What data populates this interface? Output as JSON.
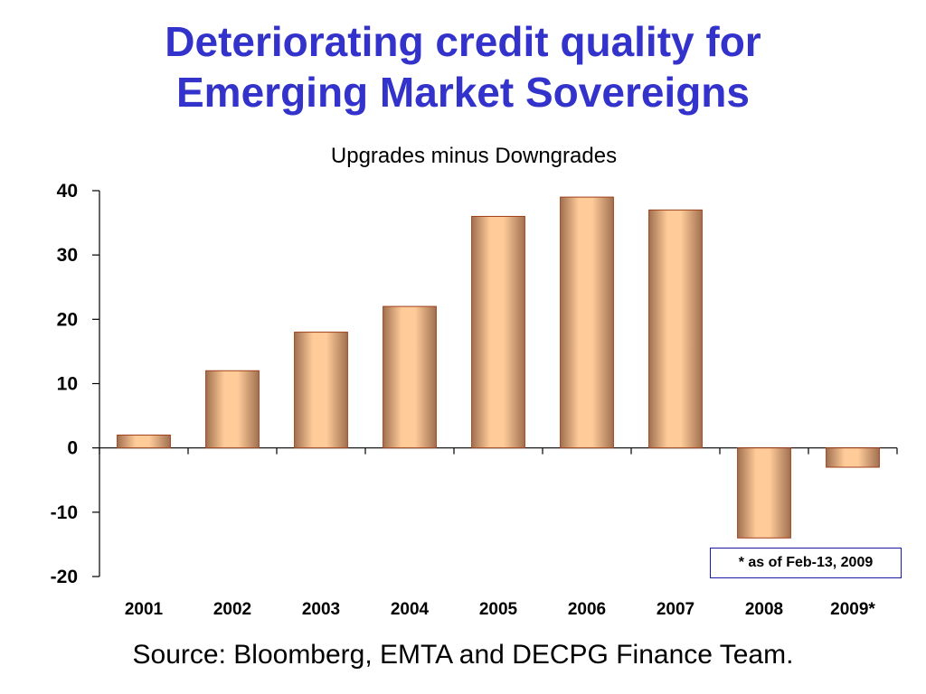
{
  "title_line1": "Deteriorating credit quality for",
  "title_line2": "Emerging Market Sovereigns",
  "footnote": "* as of Feb-13, 2009",
  "source": "Source: Bloomberg, EMTA and DECPG Finance Team.",
  "colors": {
    "title": "#3333cc",
    "bar_light": "#ffcc99",
    "bar_dark": "#a07050",
    "bar_border": "#a0401a",
    "footnote_border": "#1a1aaa"
  },
  "chart_data": {
    "type": "bar",
    "title": "Upgrades minus Downgrades",
    "xlabel": "",
    "ylabel": "",
    "categories": [
      "2001",
      "2002",
      "2003",
      "2004",
      "2005",
      "2006",
      "2007",
      "2008",
      "2009*"
    ],
    "values": [
      2,
      12,
      18,
      22,
      36,
      39,
      37,
      -14,
      -3
    ],
    "ylim": [
      -20,
      40
    ],
    "yticks": [
      40,
      30,
      20,
      10,
      0,
      -10,
      -20
    ],
    "grid": false,
    "legend": "none"
  }
}
